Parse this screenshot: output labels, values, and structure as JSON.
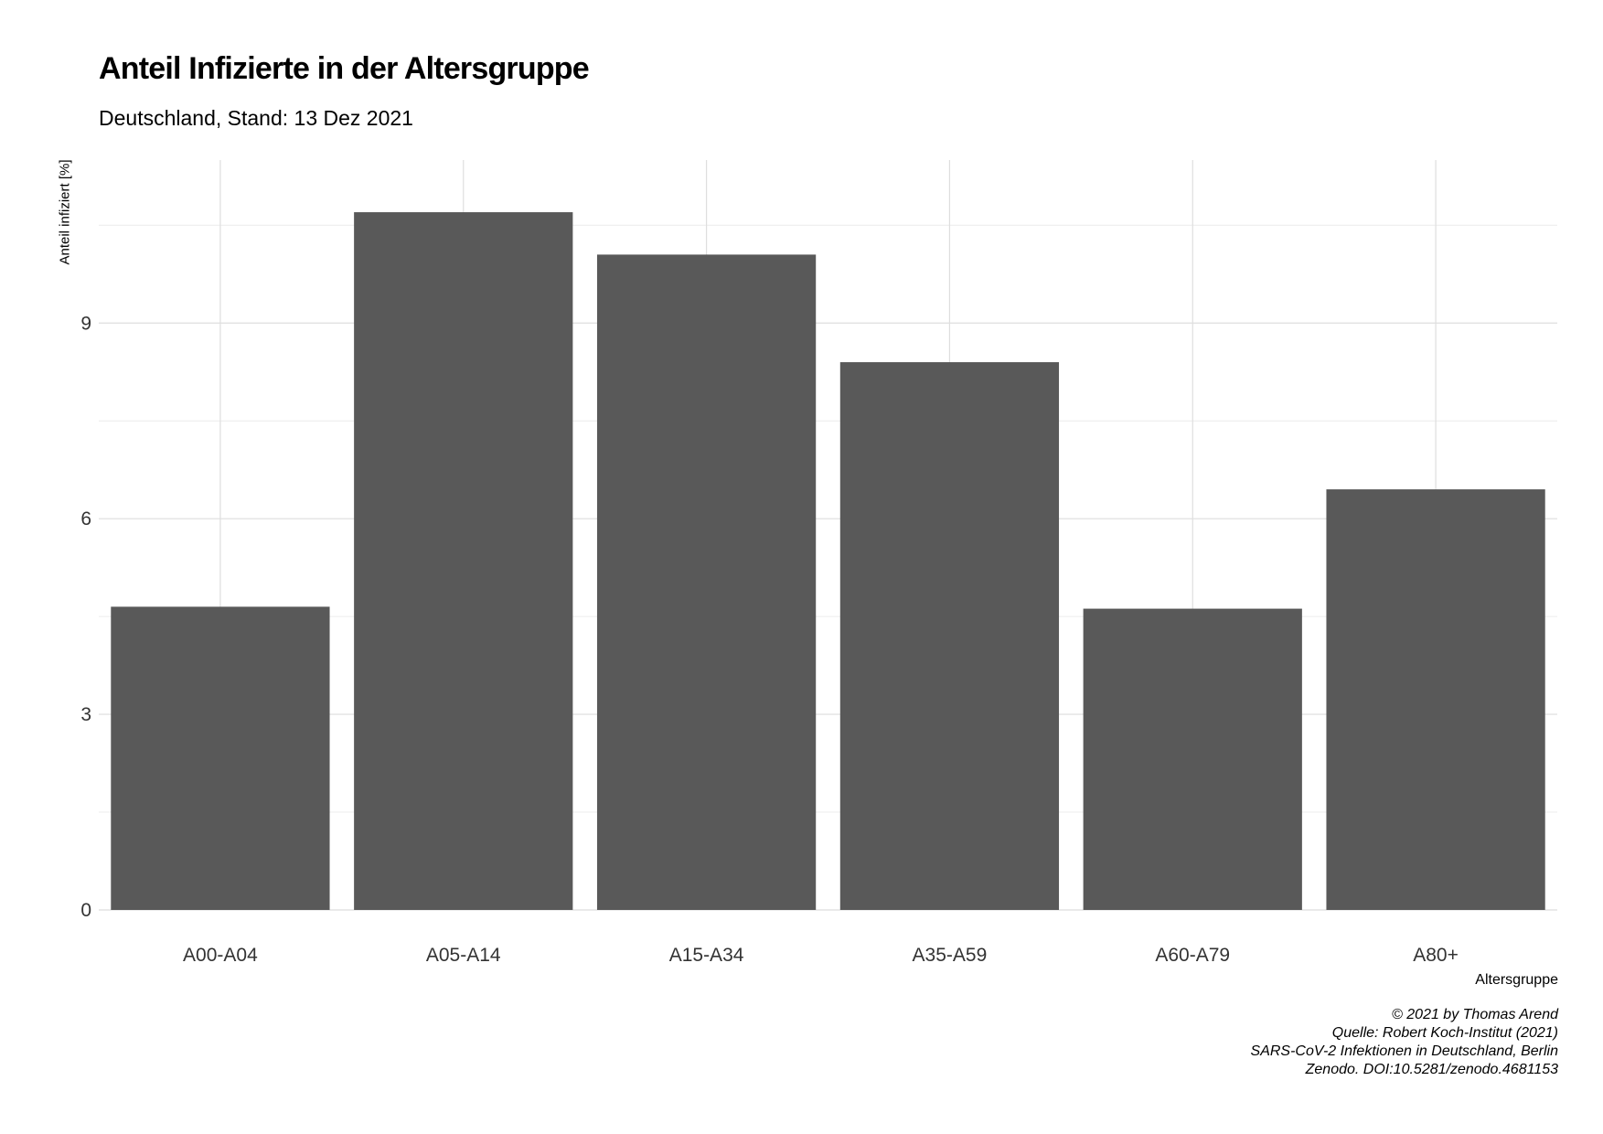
{
  "chart_data": {
    "type": "bar",
    "title": "Anteil Infizierte in der Altersgruppe",
    "subtitle": "Deutschland, Stand: 13 Dez 2021",
    "xlabel": "Altersgruppe",
    "ylabel": "Anteil infiziert [%]",
    "categories": [
      "A00-A04",
      "A05-A14",
      "A15-A34",
      "A35-A59",
      "A60-A79",
      "A80+"
    ],
    "values": [
      4.65,
      10.7,
      10.05,
      8.4,
      4.62,
      6.45
    ],
    "ylim": [
      0,
      11.5
    ],
    "yticks": [
      0,
      3,
      6,
      9
    ],
    "grid": true,
    "bar_color": "#595959",
    "caption": [
      "© 2021 by Thomas Arend",
      "Quelle: Robert Koch-Institut (2021)",
      "SARS-CoV-2 Infektionen in Deutschland, Berlin",
      "Zenodo. DOI:10.5281/zenodo.4681153"
    ]
  }
}
